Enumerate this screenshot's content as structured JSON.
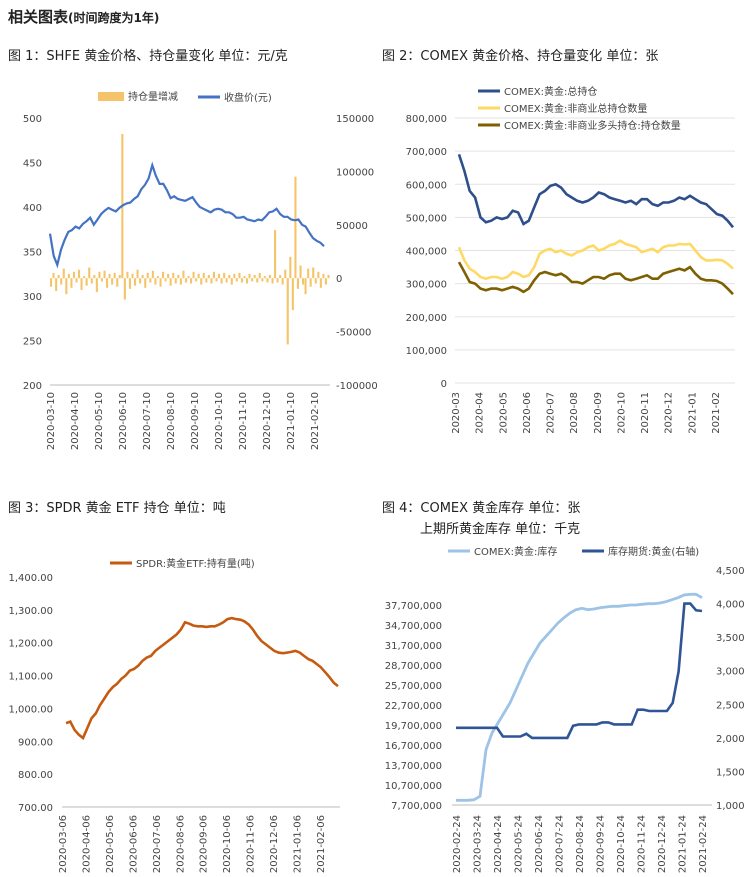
{
  "page": {
    "title": "相关图表",
    "title_suffix": "(时间跨度为1年)"
  },
  "captions": {
    "fig1": "图 1：SHFE 黄金价格、持仓量变化    单位：元/克",
    "fig2": "图 2：COMEX 黄金价格、持仓量变化    单位：张",
    "fig3": "图 3：SPDR 黄金 ETF 持仓    单位：吨",
    "fig4a": "图 4：COMEX 黄金库存    单位：张",
    "fig4b": "上期所黄金库存    单位：千克"
  },
  "chart_data": [
    {
      "id": "fig1",
      "type": "line",
      "legend_position": "top",
      "x_ticks": [
        "2020-03-10",
        "2020-04-10",
        "2020-05-10",
        "2020-06-10",
        "2020-07-10",
        "2020-08-10",
        "2020-09-10",
        "2020-10-10",
        "2020-11-10",
        "2020-12-10",
        "2021-01-10",
        "2021-02-10"
      ],
      "y_left": {
        "min": 200,
        "max": 500,
        "ticks": [
          "500",
          "450",
          "400",
          "350",
          "300",
          "250",
          "200"
        ]
      },
      "y_right": {
        "min": -100000,
        "max": 150000,
        "ticks": [
          "150000",
          "100000",
          "50000",
          "0",
          "-50000",
          "-100000"
        ]
      },
      "series": [
        {
          "name": "持仓量增减",
          "type": "bar",
          "axis": "right",
          "color": "#F5C46A",
          "values": [
            -8000,
            5000,
            -12000,
            3000,
            -6000,
            9000,
            -15000,
            4000,
            -9000,
            6000,
            -4000,
            8000,
            -11000,
            2000,
            -7000,
            10000,
            -5000,
            3000,
            -13000,
            6000,
            -3000,
            7000,
            -9000,
            4000,
            -6000,
            5000,
            -8000,
            3000,
            135000,
            -20000,
            6000,
            -10000,
            4000,
            -7000,
            8000,
            -5000,
            3000,
            -9000,
            5000,
            -4000,
            7000,
            -6000,
            2000,
            -8000,
            6000,
            -3000,
            4000,
            -7000,
            5000,
            -5000,
            3000,
            -6000,
            7000,
            -4000,
            2000,
            -5000,
            6000,
            -3000,
            4000,
            -6000,
            5000,
            -4000,
            3000,
            -5000,
            6000,
            -3000,
            4000,
            -5000,
            5000,
            -4000,
            3000,
            -6000,
            4000,
            -3000,
            5000,
            -4000,
            2000,
            -5000,
            4000,
            -3000,
            3000,
            -4000,
            5000,
            -3000,
            2000,
            -4000,
            3000,
            -5000,
            45000,
            -4000,
            3000,
            -6000,
            8000,
            -62000,
            20000,
            -30000,
            95000,
            -10000,
            12000,
            -6000,
            -15000,
            9000,
            -8000,
            10000,
            -5000,
            6000,
            -9000,
            4000,
            -6000,
            3000
          ]
        },
        {
          "name": "收盘价(元)",
          "type": "line",
          "axis": "left",
          "color": "#4472C4",
          "values": [
            370,
            345,
            335,
            352,
            363,
            372,
            374,
            378,
            376,
            381,
            384,
            388,
            380,
            386,
            392,
            396,
            399,
            397,
            395,
            399,
            402,
            404,
            405,
            409,
            412,
            420,
            425,
            432,
            447,
            435,
            426,
            426,
            419,
            410,
            412,
            409,
            408,
            407,
            409,
            411,
            405,
            400,
            398,
            396,
            394,
            397,
            398,
            397,
            394,
            394,
            392,
            388,
            388,
            389,
            386,
            385,
            384,
            386,
            385,
            389,
            394,
            395,
            398,
            392,
            389,
            389,
            386,
            385,
            386,
            380,
            378,
            371,
            365,
            362,
            360,
            356
          ]
        }
      ]
    },
    {
      "id": "fig2",
      "type": "line",
      "legend_position": "top",
      "x_ticks": [
        "2020-03",
        "2020-04",
        "2020-05",
        "2020-06",
        "2020-07",
        "2020-08",
        "2020-09",
        "2020-10",
        "2020-11",
        "2020-12",
        "2021-01",
        "2021-02"
      ],
      "y": {
        "min": 0,
        "max": 800000,
        "ticks": [
          "800,000",
          "700,000",
          "600,000",
          "500,000",
          "400,000",
          "300,000",
          "200,000",
          "100,000",
          "0"
        ]
      },
      "series": [
        {
          "name": "COMEX:黄金:总持仓",
          "color": "#2E4E8C",
          "values": [
            690000,
            640000,
            580000,
            560000,
            500000,
            485000,
            490000,
            500000,
            495000,
            500000,
            520000,
            515000,
            480000,
            490000,
            530000,
            570000,
            580000,
            595000,
            600000,
            590000,
            570000,
            560000,
            550000,
            545000,
            550000,
            560000,
            575000,
            570000,
            560000,
            555000,
            550000,
            545000,
            550000,
            540000,
            555000,
            555000,
            540000,
            535000,
            545000,
            545000,
            550000,
            560000,
            555000,
            565000,
            555000,
            545000,
            540000,
            525000,
            510000,
            505000,
            490000,
            470000
          ]
        },
        {
          "name": "COMEX:黄金:非商业总持仓数量",
          "color": "#FFD966",
          "values": [
            410000,
            370000,
            345000,
            335000,
            320000,
            315000,
            320000,
            320000,
            315000,
            320000,
            335000,
            330000,
            320000,
            325000,
            350000,
            390000,
            400000,
            405000,
            395000,
            400000,
            390000,
            385000,
            395000,
            400000,
            410000,
            415000,
            400000,
            405000,
            415000,
            420000,
            430000,
            420000,
            415000,
            410000,
            395000,
            400000,
            405000,
            395000,
            410000,
            415000,
            415000,
            420000,
            418000,
            420000,
            400000,
            380000,
            370000,
            370000,
            372000,
            370000,
            360000,
            345000
          ]
        },
        {
          "name": "COMEX:黄金:非商业多头持仓:持仓数量",
          "color": "#7F6000",
          "values": [
            365000,
            335000,
            305000,
            300000,
            285000,
            280000,
            285000,
            285000,
            280000,
            285000,
            290000,
            285000,
            275000,
            285000,
            310000,
            330000,
            335000,
            330000,
            325000,
            330000,
            320000,
            305000,
            305000,
            300000,
            310000,
            320000,
            320000,
            315000,
            325000,
            330000,
            330000,
            315000,
            310000,
            315000,
            320000,
            325000,
            315000,
            315000,
            330000,
            335000,
            340000,
            345000,
            340000,
            350000,
            330000,
            315000,
            310000,
            310000,
            308000,
            300000,
            285000,
            268000
          ]
        }
      ]
    },
    {
      "id": "fig3",
      "type": "line",
      "legend_position": "top",
      "x_ticks": [
        "2020-03-06",
        "2020-04-06",
        "2020-05-06",
        "2020-06-06",
        "2020-07-06",
        "2020-08-06",
        "2020-09-06",
        "2020-10-06",
        "2020-11-06",
        "2020-12-06",
        "2021-01-06",
        "2021-02-06"
      ],
      "y": {
        "min": 700,
        "max": 1400,
        "ticks": [
          "1,400.00",
          "1,300.00",
          "1,200.00",
          "1,100.00",
          "1,000.00",
          "900.00",
          "800.00",
          "700.00"
        ]
      },
      "series": [
        {
          "name": "SPDR:黄金ETF:持有量(吨)",
          "color": "#C55A11",
          "values": [
            955,
            960,
            935,
            920,
            910,
            940,
            970,
            985,
            1010,
            1030,
            1050,
            1065,
            1075,
            1090,
            1100,
            1115,
            1120,
            1130,
            1145,
            1155,
            1160,
            1175,
            1185,
            1195,
            1205,
            1215,
            1225,
            1240,
            1262,
            1258,
            1252,
            1250,
            1250,
            1248,
            1250,
            1250,
            1255,
            1262,
            1272,
            1275,
            1272,
            1270,
            1265,
            1255,
            1240,
            1220,
            1205,
            1195,
            1185,
            1175,
            1170,
            1168,
            1170,
            1172,
            1175,
            1170,
            1160,
            1150,
            1145,
            1135,
            1125,
            1110,
            1095,
            1078,
            1068
          ]
        }
      ]
    },
    {
      "id": "fig4",
      "type": "line",
      "legend_position": "top",
      "x_ticks": [
        "2020-02-24",
        "2020-03-24",
        "2020-04-24",
        "2020-05-24",
        "2020-06-24",
        "2020-07-24",
        "2020-08-24",
        "2020-09-24",
        "2020-10-24",
        "2020-11-24",
        "2020-12-24",
        "2021-01-24",
        "2021-02-24"
      ],
      "y_left": {
        "min": 7700000,
        "max": 40700000,
        "ticks": [
          "37,700,000",
          "34,700,000",
          "31,700,000",
          "28,700,000",
          "25,700,000",
          "22,700,000",
          "19,700,000",
          "16,700,000",
          "13,700,000",
          "10,700,000",
          "7,700,000"
        ]
      },
      "y_right": {
        "min": 1000,
        "max": 4500,
        "ticks": [
          "4,500",
          "4,000",
          "3,500",
          "3,000",
          "2,500",
          "2,000",
          "1,500",
          "1,000"
        ]
      },
      "series": [
        {
          "name": "COMEX:黄金:库存",
          "axis": "left",
          "color": "#9DC3E6",
          "values": [
            8400000,
            8400000,
            8400000,
            8500000,
            9000000,
            16000000,
            18500000,
            20000000,
            21500000,
            23000000,
            25000000,
            27000000,
            29000000,
            30500000,
            32000000,
            33000000,
            34000000,
            35000000,
            35800000,
            36500000,
            37000000,
            37200000,
            37000000,
            37100000,
            37300000,
            37400000,
            37500000,
            37500000,
            37600000,
            37700000,
            37700000,
            37800000,
            37900000,
            37900000,
            38000000,
            38200000,
            38500000,
            38800000,
            39200000,
            39300000,
            39300000,
            38800000
          ]
        },
        {
          "name": "库存期货:黄金(右轴)",
          "axis": "right",
          "color": "#2F5597",
          "values": [
            2150,
            2150,
            2150,
            2150,
            2150,
            2150,
            2150,
            2150,
            2020,
            2020,
            2020,
            2020,
            2060,
            2000,
            2000,
            2000,
            2000,
            2000,
            2000,
            2000,
            2180,
            2200,
            2200,
            2200,
            2200,
            2230,
            2230,
            2200,
            2200,
            2200,
            2200,
            2420,
            2420,
            2400,
            2400,
            2400,
            2400,
            2520,
            2990,
            4000,
            4000,
            3900,
            3890
          ]
        }
      ]
    }
  ]
}
